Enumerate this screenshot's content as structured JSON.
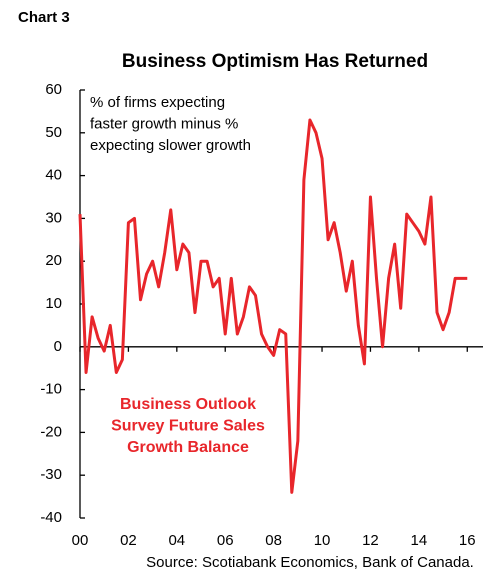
{
  "chart_data": {
    "type": "line",
    "label": "Chart 3",
    "title": "Business Optimism Has Returned",
    "annotation": [
      "% of firms expecting",
      "faster growth minus %",
      "expecting slower growth"
    ],
    "series_annotation": [
      "Business Outlook",
      "Survey Future Sales",
      "Growth  Balance"
    ],
    "source": "Source: Scotiabank Economics, Bank of Canada.",
    "x": [
      2000,
      2000.25,
      2000.5,
      2000.75,
      2001,
      2001.25,
      2001.5,
      2001.75,
      2002,
      2002.25,
      2002.5,
      2002.75,
      2003,
      2003.25,
      2003.5,
      2003.75,
      2004,
      2004.25,
      2004.5,
      2004.75,
      2005,
      2005.25,
      2005.5,
      2005.75,
      2006,
      2006.25,
      2006.5,
      2006.75,
      2007,
      2007.25,
      2007.5,
      2007.75,
      2008,
      2008.25,
      2008.5,
      2008.75,
      2009,
      2009.25,
      2009.5,
      2009.75,
      2010,
      2010.25,
      2010.5,
      2010.75,
      2011,
      2011.25,
      2011.5,
      2011.75,
      2012,
      2012.25,
      2012.5,
      2012.75,
      2013,
      2013.25,
      2013.5,
      2013.75,
      2014,
      2014.25,
      2014.5,
      2014.75,
      2015,
      2015.25,
      2015.5,
      2015.75,
      2016
    ],
    "series": [
      {
        "name": "Business Outlook Survey Future Sales Growth Balance",
        "color": "#e8262b",
        "values": [
          31,
          -6,
          7,
          2,
          -1,
          5,
          -6,
          -3,
          29,
          30,
          11,
          17,
          20,
          14,
          22,
          32,
          18,
          24,
          22,
          8,
          20,
          20,
          14,
          16,
          3,
          16,
          3,
          7,
          14,
          12,
          3,
          0,
          -2,
          4,
          3,
          -34,
          -22,
          39,
          53,
          50,
          44,
          25,
          29,
          22,
          13,
          20,
          5,
          -4,
          35,
          16,
          0,
          16,
          24,
          9,
          31,
          29,
          27,
          24,
          35,
          8,
          4,
          8,
          16,
          16,
          16
        ]
      }
    ],
    "xlim": [
      2000,
      2016.65
    ],
    "xticks": [
      {
        "value": 2000,
        "label": "00"
      },
      {
        "value": 2002,
        "label": "02"
      },
      {
        "value": 2004,
        "label": "04"
      },
      {
        "value": 2006,
        "label": "06"
      },
      {
        "value": 2008,
        "label": "08"
      },
      {
        "value": 2010,
        "label": "10"
      },
      {
        "value": 2012,
        "label": "12"
      },
      {
        "value": 2014,
        "label": "14"
      },
      {
        "value": 2016,
        "label": "16"
      }
    ],
    "ylim": [
      -40,
      60
    ],
    "yticks": [
      -40,
      -30,
      -20,
      -10,
      0,
      10,
      20,
      30,
      40,
      50,
      60
    ]
  }
}
